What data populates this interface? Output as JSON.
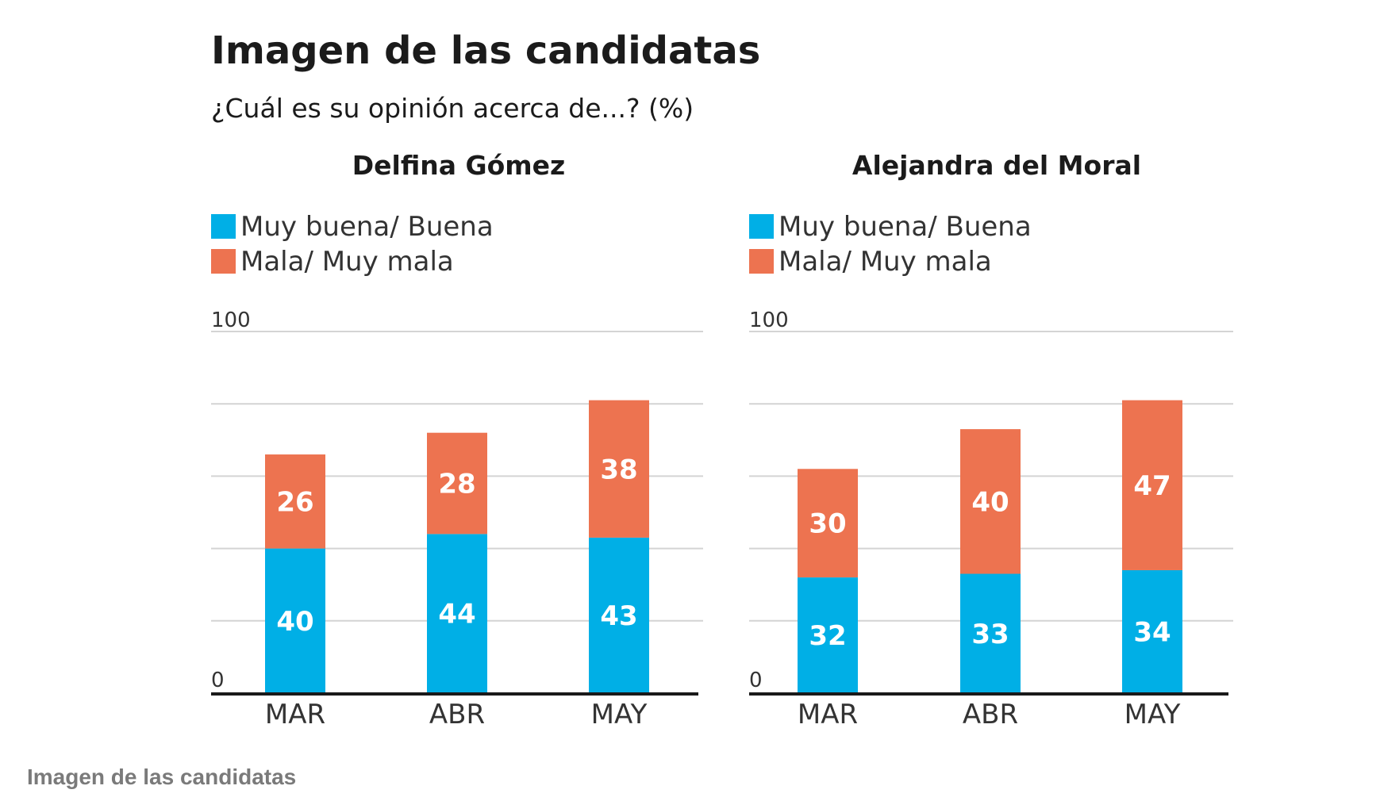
{
  "title": "Imagen de las candidatas",
  "subtitle": "¿Cuál es su opinión acerca de...? (%)",
  "caption": "Imagen de las candidatas",
  "colors": {
    "positive": "#00afe6",
    "negative": "#ed7350",
    "grid": "#d4d4d4",
    "axis": "#1a1a1a"
  },
  "chart_data": [
    {
      "type": "bar",
      "stacked": true,
      "title": "Delfina Gómez",
      "categories": [
        "MAR",
        "ABR",
        "MAY"
      ],
      "series": [
        {
          "name": "Muy buena/ Buena",
          "values": [
            40,
            44,
            43
          ]
        },
        {
          "name": "Mala/ Muy mala",
          "values": [
            26,
            28,
            38
          ]
        }
      ],
      "ylim": [
        0,
        100
      ],
      "y_tick_labels": [
        "0",
        "100"
      ],
      "grid": true,
      "legend": "top-left"
    },
    {
      "type": "bar",
      "stacked": true,
      "title": "Alejandra del Moral",
      "categories": [
        "MAR",
        "ABR",
        "MAY"
      ],
      "series": [
        {
          "name": "Muy buena/ Buena",
          "values": [
            32,
            33,
            34
          ]
        },
        {
          "name": "Mala/ Muy mala",
          "values": [
            30,
            40,
            47
          ]
        }
      ],
      "ylim": [
        0,
        100
      ],
      "y_tick_labels": [
        "0",
        "100"
      ],
      "grid": true,
      "legend": "top-left"
    }
  ]
}
